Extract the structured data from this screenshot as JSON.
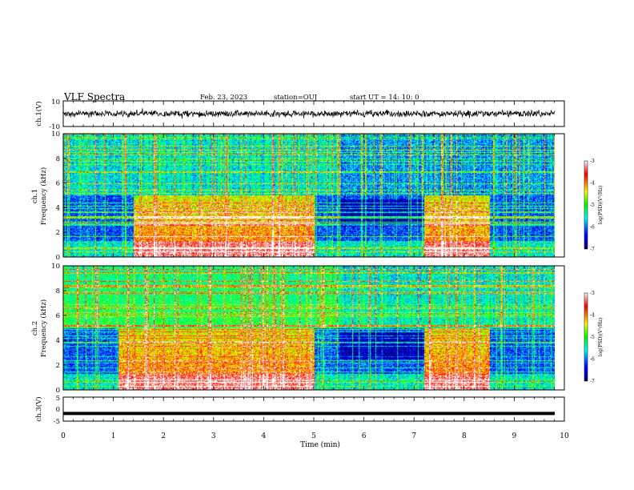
{
  "header": {
    "title": "VLF Spectra",
    "date": "Feb. 23, 2023",
    "station": "station=OUJ",
    "start": "start  UT =   14: 10: 0"
  },
  "chart_data": [
    {
      "type": "line",
      "panel": "ch1-waveform",
      "ylabel": "ch.1(V)",
      "ylim": [
        -10,
        10
      ],
      "yticks": [
        "10",
        "-10"
      ],
      "xlim": [
        0,
        10
      ],
      "amplitude_range": [
        -3,
        3
      ]
    },
    {
      "type": "heatmap",
      "panel": "ch1-spectrogram",
      "ylabel_top": "ch.1",
      "ylabel": "Frequency (kHz)",
      "ylim": [
        0,
        10
      ],
      "yticks": [
        "0",
        "2",
        "4",
        "6",
        "8",
        "10"
      ],
      "xlim": [
        0,
        10
      ],
      "colorbar": {
        "label": "log(PSD)(V²/Hz)",
        "range": [
          -7,
          -3
        ],
        "ticks": [
          "-3",
          "-4",
          "-5",
          "-6",
          "-7"
        ]
      },
      "colormap": [
        "#000066",
        "#0000ff",
        "#00ffff",
        "#00ff00",
        "#ffff00",
        "#ff0000",
        "#ffffff"
      ],
      "activity_intervals_min": [
        [
          1.4,
          5.0
        ],
        [
          7.2,
          8.5
        ]
      ]
    },
    {
      "type": "heatmap",
      "panel": "ch2-spectrogram",
      "ylabel_top": "ch.2",
      "ylabel": "Frequency (kHz)",
      "ylim": [
        0,
        10
      ],
      "yticks": [
        "0",
        "2",
        "4",
        "6",
        "8",
        "10"
      ],
      "xlim": [
        0,
        10
      ],
      "colorbar": {
        "label": "log(PSD)(V²/Hz)",
        "range": [
          -7,
          -3
        ],
        "ticks": [
          "-3",
          "-4",
          "-5",
          "-6",
          "-7"
        ]
      },
      "colormap": [
        "#000066",
        "#0000ff",
        "#00ffff",
        "#00ff00",
        "#ffff00",
        "#ff0000",
        "#ffffff"
      ],
      "activity_intervals_min": [
        [
          1.1,
          5.0
        ],
        [
          7.2,
          8.5
        ]
      ]
    },
    {
      "type": "line",
      "panel": "ch3-waveform",
      "ylabel": "ch.3(V)",
      "ylim": [
        -5,
        5
      ],
      "yticks": [
        "5",
        "0",
        "-5"
      ],
      "xlim": [
        0,
        10
      ],
      "level_V": -1.8
    }
  ],
  "xaxis": {
    "label": "Time (min)",
    "ticks": [
      "0",
      "1",
      "2",
      "3",
      "4",
      "5",
      "6",
      "7",
      "8",
      "9",
      "10"
    ]
  }
}
